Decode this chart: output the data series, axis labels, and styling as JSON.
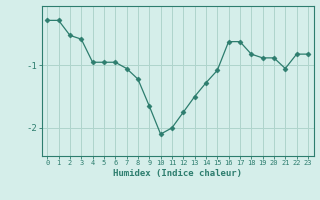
{
  "x": [
    0,
    1,
    2,
    3,
    4,
    5,
    6,
    7,
    8,
    9,
    10,
    11,
    12,
    13,
    14,
    15,
    16,
    17,
    18,
    19,
    20,
    21,
    22,
    23
  ],
  "y": [
    -0.28,
    -0.28,
    -0.52,
    -0.58,
    -0.95,
    -0.95,
    -0.95,
    -1.05,
    -1.22,
    -1.65,
    -2.1,
    -2.0,
    -1.75,
    -1.5,
    -1.28,
    -1.08,
    -0.62,
    -0.62,
    -0.82,
    -0.88,
    -0.88,
    -1.05,
    -0.82,
    -0.82
  ],
  "line_color": "#2d7d6e",
  "marker": "D",
  "marker_size": 2.5,
  "bg_color": "#d5eeea",
  "grid_color": "#aed4cc",
  "axis_color": "#2d7d6e",
  "xlabel": "Humidex (Indice chaleur)",
  "yticks": [
    -2,
    -1
  ],
  "ylim": [
    -2.45,
    -0.05
  ],
  "xlim": [
    -0.5,
    23.5
  ]
}
